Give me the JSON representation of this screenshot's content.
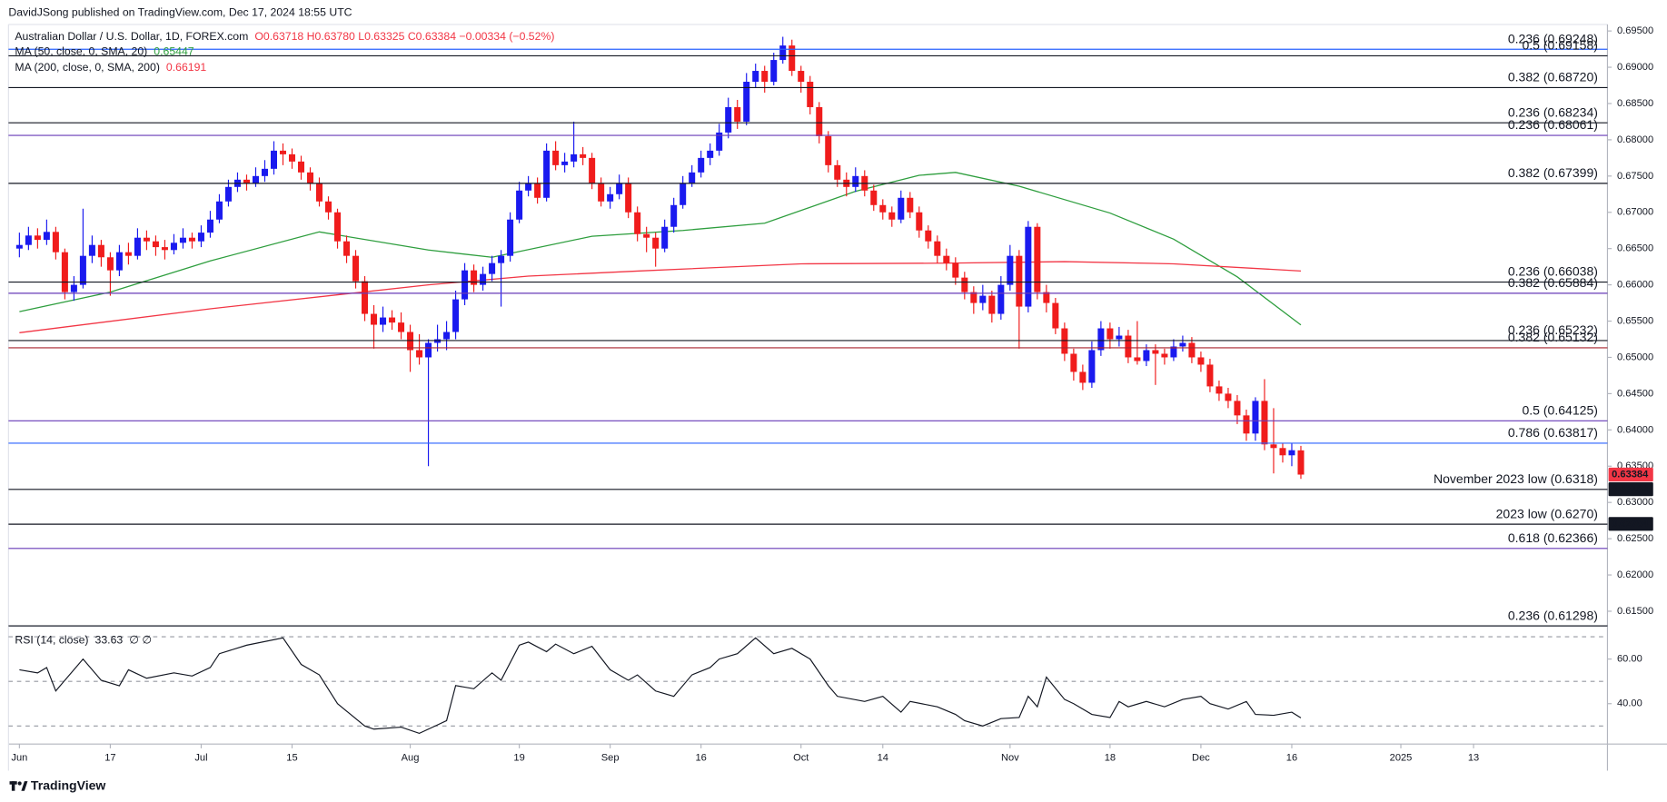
{
  "header": {
    "publisher": "DavidJSong published on TradingView.com, Dec 17, 2024 18:55 UTC",
    "footer": "TradingView"
  },
  "chart_data": {
    "type": "candlestick",
    "title": "Australian Dollar / U.S. Dollar, 1D, FOREX.com",
    "ohlc_label": "O0.63718 H0.63780 L0.63325 C0.63384 −0.00334 (−0.52%)",
    "up_color": "#1a1aef",
    "down_color": "#f01c1c",
    "ohlc": [
      [
        0.665,
        0.6672,
        0.6638,
        0.6655
      ],
      [
        0.6655,
        0.668,
        0.6648,
        0.6668
      ],
      [
        0.6668,
        0.6678,
        0.665,
        0.6662
      ],
      [
        0.6662,
        0.669,
        0.6655,
        0.6673
      ],
      [
        0.6673,
        0.668,
        0.6635,
        0.6645
      ],
      [
        0.6645,
        0.665,
        0.658,
        0.659
      ],
      [
        0.659,
        0.6612,
        0.6578,
        0.66
      ],
      [
        0.66,
        0.6705,
        0.6595,
        0.664
      ],
      [
        0.664,
        0.6668,
        0.663,
        0.6655
      ],
      [
        0.6655,
        0.6662,
        0.6625,
        0.6638
      ],
      [
        0.6638,
        0.6645,
        0.6585,
        0.662
      ],
      [
        0.662,
        0.6655,
        0.6612,
        0.6645
      ],
      [
        0.6645,
        0.6658,
        0.6628,
        0.664
      ],
      [
        0.664,
        0.6678,
        0.6635,
        0.6665
      ],
      [
        0.6665,
        0.6675,
        0.6648,
        0.666
      ],
      [
        0.666,
        0.6668,
        0.664,
        0.6652
      ],
      [
        0.6652,
        0.6662,
        0.6635,
        0.6648
      ],
      [
        0.6648,
        0.667,
        0.6642,
        0.6658
      ],
      [
        0.6658,
        0.6678,
        0.665,
        0.6665
      ],
      [
        0.6665,
        0.6672,
        0.665,
        0.666
      ],
      [
        0.666,
        0.6682,
        0.6652,
        0.6672
      ],
      [
        0.6672,
        0.6702,
        0.6665,
        0.669
      ],
      [
        0.669,
        0.6725,
        0.6685,
        0.6715
      ],
      [
        0.6715,
        0.6745,
        0.6708,
        0.6735
      ],
      [
        0.6735,
        0.6755,
        0.6728,
        0.6745
      ],
      [
        0.6745,
        0.6752,
        0.673,
        0.674
      ],
      [
        0.674,
        0.6762,
        0.6735,
        0.675
      ],
      [
        0.675,
        0.6772,
        0.6742,
        0.676
      ],
      [
        0.676,
        0.6798,
        0.6752,
        0.6785
      ],
      [
        0.6785,
        0.6795,
        0.6765,
        0.678
      ],
      [
        0.678,
        0.6788,
        0.676,
        0.677
      ],
      [
        0.677,
        0.6778,
        0.6745,
        0.6755
      ],
      [
        0.6755,
        0.6762,
        0.673,
        0.674
      ],
      [
        0.674,
        0.6748,
        0.6708,
        0.6715
      ],
      [
        0.6715,
        0.6722,
        0.669,
        0.67
      ],
      [
        0.67,
        0.6705,
        0.665,
        0.666
      ],
      [
        0.666,
        0.6668,
        0.663,
        0.664
      ],
      [
        0.664,
        0.6648,
        0.6595,
        0.6605
      ],
      [
        0.6605,
        0.6612,
        0.655,
        0.656
      ],
      [
        0.656,
        0.6572,
        0.6512,
        0.6545
      ],
      [
        0.6545,
        0.657,
        0.6535,
        0.6555
      ],
      [
        0.6555,
        0.6565,
        0.6538,
        0.6548
      ],
      [
        0.6548,
        0.6562,
        0.6525,
        0.6535
      ],
      [
        0.6535,
        0.6545,
        0.648,
        0.651
      ],
      [
        0.651,
        0.6532,
        0.649,
        0.65
      ],
      [
        0.65,
        0.6525,
        0.635,
        0.652
      ],
      [
        0.652,
        0.6545,
        0.6508,
        0.6525
      ],
      [
        0.6525,
        0.655,
        0.651,
        0.6535
      ],
      [
        0.6535,
        0.6592,
        0.6525,
        0.658
      ],
      [
        0.658,
        0.663,
        0.6572,
        0.662
      ],
      [
        0.662,
        0.6628,
        0.659,
        0.66
      ],
      [
        0.66,
        0.6625,
        0.6592,
        0.6615
      ],
      [
        0.6615,
        0.664,
        0.6605,
        0.663
      ],
      [
        0.663,
        0.6648,
        0.657,
        0.664
      ],
      [
        0.664,
        0.67,
        0.6632,
        0.669
      ],
      [
        0.669,
        0.6742,
        0.6685,
        0.673
      ],
      [
        0.673,
        0.675,
        0.6722,
        0.674
      ],
      [
        0.674,
        0.6748,
        0.6712,
        0.672
      ],
      [
        0.672,
        0.6795,
        0.6715,
        0.6785
      ],
      [
        0.6785,
        0.6798,
        0.6758,
        0.6765
      ],
      [
        0.6765,
        0.6782,
        0.6755,
        0.677
      ],
      [
        0.677,
        0.6825,
        0.6762,
        0.678
      ],
      [
        0.678,
        0.679,
        0.6765,
        0.6775
      ],
      [
        0.6775,
        0.6782,
        0.6732,
        0.674
      ],
      [
        0.674,
        0.6748,
        0.6708,
        0.6715
      ],
      [
        0.6715,
        0.6735,
        0.6705,
        0.6725
      ],
      [
        0.6725,
        0.6752,
        0.6718,
        0.674
      ],
      [
        0.674,
        0.6748,
        0.6692,
        0.67
      ],
      [
        0.67,
        0.6708,
        0.666,
        0.667
      ],
      [
        0.667,
        0.668,
        0.6645,
        0.6665
      ],
      [
        0.6665,
        0.6672,
        0.6625,
        0.665
      ],
      [
        0.665,
        0.669,
        0.6645,
        0.668
      ],
      [
        0.668,
        0.672,
        0.6672,
        0.671
      ],
      [
        0.671,
        0.675,
        0.6705,
        0.674
      ],
      [
        0.674,
        0.6765,
        0.6735,
        0.6755
      ],
      [
        0.6755,
        0.6785,
        0.6748,
        0.6775
      ],
      [
        0.6775,
        0.6795,
        0.6765,
        0.6785
      ],
      [
        0.6785,
        0.6822,
        0.6778,
        0.681
      ],
      [
        0.681,
        0.6858,
        0.6802,
        0.6845
      ],
      [
        0.6845,
        0.6855,
        0.6815,
        0.6825
      ],
      [
        0.6825,
        0.6892,
        0.682,
        0.688
      ],
      [
        0.688,
        0.6905,
        0.6872,
        0.6895
      ],
      [
        0.6895,
        0.6902,
        0.6865,
        0.688
      ],
      [
        0.688,
        0.692,
        0.6875,
        0.691
      ],
      [
        0.691,
        0.6942,
        0.6905,
        0.693
      ],
      [
        0.693,
        0.6938,
        0.6888,
        0.6895
      ],
      [
        0.6895,
        0.6902,
        0.6865,
        0.688
      ],
      [
        0.688,
        0.6888,
        0.6835,
        0.6845
      ],
      [
        0.6845,
        0.6852,
        0.6795,
        0.6805
      ],
      [
        0.6805,
        0.6812,
        0.6755,
        0.6765
      ],
      [
        0.6765,
        0.6772,
        0.6735,
        0.6745
      ],
      [
        0.6745,
        0.6755,
        0.6722,
        0.6735
      ],
      [
        0.6735,
        0.6762,
        0.6728,
        0.675
      ],
      [
        0.675,
        0.6758,
        0.6722,
        0.673
      ],
      [
        0.673,
        0.6738,
        0.6702,
        0.671
      ],
      [
        0.671,
        0.6718,
        0.669,
        0.67
      ],
      [
        0.67,
        0.6708,
        0.668,
        0.669
      ],
      [
        0.669,
        0.673,
        0.6685,
        0.672
      ],
      [
        0.672,
        0.6728,
        0.6692,
        0.67
      ],
      [
        0.67,
        0.6708,
        0.6665,
        0.6675
      ],
      [
        0.6675,
        0.6682,
        0.665,
        0.666
      ],
      [
        0.666,
        0.6668,
        0.663,
        0.664
      ],
      [
        0.664,
        0.665,
        0.662,
        0.663
      ],
      [
        0.663,
        0.6638,
        0.66,
        0.661
      ],
      [
        0.661,
        0.6618,
        0.658,
        0.659
      ],
      [
        0.659,
        0.6598,
        0.656,
        0.6575
      ],
      [
        0.6575,
        0.66,
        0.6565,
        0.6585
      ],
      [
        0.6585,
        0.6592,
        0.6548,
        0.656
      ],
      [
        0.656,
        0.6612,
        0.6552,
        0.66
      ],
      [
        0.66,
        0.6655,
        0.6592,
        0.664
      ],
      [
        0.664,
        0.6648,
        0.6512,
        0.657
      ],
      [
        0.657,
        0.6688,
        0.6562,
        0.668
      ],
      [
        0.668,
        0.6685,
        0.658,
        0.659
      ],
      [
        0.659,
        0.66,
        0.6562,
        0.6575
      ],
      [
        0.6575,
        0.6582,
        0.6532,
        0.654
      ],
      [
        0.654,
        0.6548,
        0.6495,
        0.6505
      ],
      [
        0.6505,
        0.6512,
        0.6468,
        0.648
      ],
      [
        0.648,
        0.649,
        0.6455,
        0.6465
      ],
      [
        0.6465,
        0.6522,
        0.6458,
        0.651
      ],
      [
        0.651,
        0.655,
        0.6502,
        0.654
      ],
      [
        0.654,
        0.6548,
        0.6512,
        0.6525
      ],
      [
        0.6525,
        0.6542,
        0.6515,
        0.653
      ],
      [
        0.653,
        0.6538,
        0.6492,
        0.65
      ],
      [
        0.65,
        0.655,
        0.649,
        0.6495
      ],
      [
        0.6495,
        0.6518,
        0.6488,
        0.651
      ],
      [
        0.651,
        0.6518,
        0.6462,
        0.6505
      ],
      [
        0.6505,
        0.6512,
        0.649,
        0.65
      ],
      [
        0.65,
        0.6525,
        0.6495,
        0.6515
      ],
      [
        0.6515,
        0.653,
        0.6508,
        0.652
      ],
      [
        0.652,
        0.6528,
        0.6492,
        0.65
      ],
      [
        0.65,
        0.6508,
        0.648,
        0.649
      ],
      [
        0.649,
        0.6498,
        0.6452,
        0.646
      ],
      [
        0.646,
        0.6468,
        0.644,
        0.645
      ],
      [
        0.645,
        0.6458,
        0.643,
        0.644
      ],
      [
        0.644,
        0.6448,
        0.6408,
        0.642
      ],
      [
        0.642,
        0.6428,
        0.6385,
        0.6395
      ],
      [
        0.6395,
        0.6445,
        0.6385,
        0.644
      ],
      [
        0.644,
        0.647,
        0.6372,
        0.638
      ],
      [
        0.638,
        0.643,
        0.634,
        0.6375
      ],
      [
        0.6375,
        0.6382,
        0.6355,
        0.6365
      ],
      [
        0.6365,
        0.6382,
        0.635,
        0.6372
      ],
      [
        0.63718,
        0.6378,
        0.63325,
        0.63384
      ]
    ],
    "xlim": [
      -1.2,
      174.5
    ],
    "xticks": [
      {
        "value": 0,
        "label": "Jun"
      },
      {
        "value": 10,
        "label": "17"
      },
      {
        "value": 20,
        "label": "Jul"
      },
      {
        "value": 30,
        "label": "15"
      },
      {
        "value": 43,
        "label": "Aug"
      },
      {
        "value": 55,
        "label": "19"
      },
      {
        "value": 65,
        "label": "Sep"
      },
      {
        "value": 75,
        "label": "16"
      },
      {
        "value": 86,
        "label": "Oct"
      },
      {
        "value": 95,
        "label": "14"
      },
      {
        "value": 109,
        "label": "Nov"
      },
      {
        "value": 120,
        "label": "18"
      },
      {
        "value": 130,
        "label": "Dec"
      },
      {
        "value": 140,
        "label": "16"
      },
      {
        "value": 152,
        "label": "2025"
      },
      {
        "value": 160,
        "label": "13"
      }
    ],
    "ylim": [
      0.6131,
      0.6981
    ],
    "yticks": [
      {
        "value": 0.695,
        "label": "0.69500"
      },
      {
        "value": 0.69,
        "label": "0.69000"
      },
      {
        "value": 0.685,
        "label": "0.68500"
      },
      {
        "value": 0.68,
        "label": "0.68000"
      },
      {
        "value": 0.675,
        "label": "0.67500"
      },
      {
        "value": 0.67,
        "label": "0.67000"
      },
      {
        "value": 0.665,
        "label": "0.66500"
      },
      {
        "value": 0.66,
        "label": "0.66000"
      },
      {
        "value": 0.655,
        "label": "0.65500"
      },
      {
        "value": 0.65,
        "label": "0.65000"
      },
      {
        "value": 0.645,
        "label": "0.64500"
      },
      {
        "value": 0.64,
        "label": "0.64000"
      },
      {
        "value": 0.635,
        "label": "0.63500"
      },
      {
        "value": 0.63,
        "label": "0.63000"
      },
      {
        "value": 0.625,
        "label": "0.62500"
      },
      {
        "value": 0.62,
        "label": "0.62000"
      },
      {
        "value": 0.615,
        "label": "0.61500"
      }
    ],
    "ma_series": [
      {
        "name": "MA (50, close, 0, SMA, 20)",
        "color": "#2e9e3e",
        "x": [
          0,
          10,
          21,
          33,
          45,
          52,
          63,
          73,
          82,
          92,
          99,
          103,
          110,
          120,
          127,
          134,
          141
        ],
        "values": [
          0.6563,
          0.659,
          0.6633,
          0.6673,
          0.6648,
          0.6638,
          0.6667,
          0.6675,
          0.6685,
          0.6729,
          0.6751,
          0.6755,
          0.6736,
          0.6699,
          0.6663,
          0.6611,
          0.65447
        ]
      },
      {
        "name": "MA (200, close, 0, SMA, 200)",
        "color": "#f23645",
        "x": [
          0,
          21,
          45,
          56,
          68,
          86,
          103,
          115,
          127,
          141
        ],
        "values": [
          0.6534,
          0.6567,
          0.66,
          0.6612,
          0.6619,
          0.6629,
          0.663,
          0.6632,
          0.6629,
          0.66191
        ]
      }
    ],
    "levels": [
      {
        "label": "0.236 (0.69248)",
        "value": 0.69248,
        "color": "#2962ff"
      },
      {
        "label": "0.5 (0.69158)",
        "value": 0.69158,
        "color": "#131722"
      },
      {
        "label": "0.382 (0.68720)",
        "value": 0.6872,
        "color": "#131722"
      },
      {
        "label": "0.236 (0.68234)",
        "value": 0.68234,
        "color": "#131722"
      },
      {
        "label": "0.236 (0.68061)",
        "value": 0.68061,
        "color": "#673ab7"
      },
      {
        "label": "0.382 (0.67399)",
        "value": 0.67399,
        "color": "#131722"
      },
      {
        "label": "0.236 (0.66038)",
        "value": 0.66038,
        "color": "#131722"
      },
      {
        "label": "0.382 (0.65884)",
        "value": 0.65884,
        "color": "#673ab7"
      },
      {
        "label": "0.236 (0.65232)",
        "value": 0.65232,
        "color": "#131722"
      },
      {
        "label": "0.382 (0.65132)",
        "value": 0.65132,
        "color": "#a8232d"
      },
      {
        "label": "0.5 (0.64125)",
        "value": 0.64125,
        "color": "#673ab7"
      },
      {
        "label": "0.786 (0.63817)",
        "value": 0.63817,
        "color": "#2962ff"
      },
      {
        "label": "November 2023 low (0.6318)",
        "value": 0.6318,
        "color": "#131722"
      },
      {
        "label": "2023 low (0.6270)",
        "value": 0.627,
        "color": "#131722"
      },
      {
        "label": "0.618 (0.62366)",
        "value": 0.62366,
        "color": "#673ab7"
      },
      {
        "label": "0.236 (0.61298)",
        "value": 0.61298,
        "color": "#131722"
      }
    ],
    "badges": [
      {
        "value": 0.63384,
        "color": "#f23645"
      },
      {
        "value": 0.63182,
        "color": "#131722"
      },
      {
        "value": 0.62704,
        "color": "#131722"
      }
    ],
    "rsi": {
      "type": "line",
      "name": "RSI (14, close)",
      "na_markers": "∅ ∅",
      "color": "#131722",
      "x": [
        0,
        2,
        3,
        4,
        5,
        7,
        9,
        11,
        12,
        14,
        17,
        19,
        21,
        22,
        25,
        29,
        31,
        33,
        35,
        38,
        39,
        42,
        44,
        46,
        47,
        48,
        50,
        52,
        53,
        55,
        56,
        58,
        59,
        61,
        63,
        65,
        67,
        68,
        70,
        72,
        74,
        76,
        77,
        79,
        81,
        83,
        85,
        87,
        89,
        90,
        93,
        95,
        97,
        98,
        101,
        103,
        104,
        106,
        108,
        110,
        111,
        112,
        113,
        115,
        116,
        118,
        120,
        121,
        122,
        124,
        126,
        128,
        130,
        131,
        133,
        135,
        136,
        138,
        140,
        141
      ],
      "values": [
        55.2,
        53.8,
        56.2,
        45.7,
        50.5,
        60,
        50.5,
        48,
        55.2,
        51.4,
        53.8,
        52.4,
        56.2,
        62.4,
        66.2,
        69.5,
        57.6,
        52.9,
        40,
        30,
        28.6,
        29.5,
        26.7,
        30.5,
        32.4,
        48.1,
        46.7,
        53.8,
        50.5,
        66.2,
        67.6,
        63.3,
        66.7,
        62.4,
        65.7,
        55.2,
        50.5,
        52.9,
        45.7,
        43.3,
        52.9,
        56.2,
        60,
        62.4,
        69.5,
        62.4,
        64.8,
        60,
        48.1,
        43.3,
        41,
        43.3,
        36.2,
        41,
        38.6,
        35.2,
        32.4,
        30,
        33.3,
        33.8,
        43.3,
        38.6,
        51.9,
        41.9,
        40,
        35.2,
        33.8,
        41,
        38.6,
        41,
        38.6,
        41.9,
        43.3,
        40,
        37.6,
        41,
        35.2,
        34.8,
        36.2,
        33.63
      ],
      "ylim": [
        21.9,
        74.3
      ],
      "yticks": [
        {
          "value": 60,
          "label": "60.00"
        },
        {
          "value": 40,
          "label": "40.00"
        }
      ],
      "levels": [
        70,
        50,
        30
      ]
    }
  }
}
